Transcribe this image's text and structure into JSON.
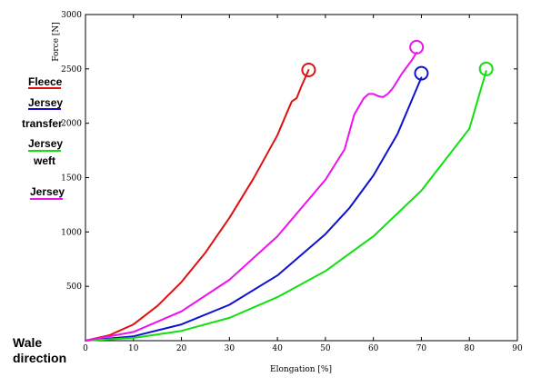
{
  "chart_data": {
    "type": "line",
    "xlabel": "Elongation [%]",
    "ylabel": "Force [N]",
    "xlim": [
      0,
      90
    ],
    "ylim": [
      0,
      3000
    ],
    "xticks": [
      0,
      10,
      20,
      30,
      40,
      50,
      60,
      70,
      80,
      90
    ],
    "yticks": [
      500,
      1000,
      1500,
      2000,
      2500,
      3000
    ],
    "grid": false,
    "legend_position": "left",
    "caption": [
      "Wale",
      "direction"
    ],
    "series": [
      {
        "name": "Fleece",
        "color": "#e01010",
        "x": [
          0,
          5,
          10,
          15,
          20,
          25,
          30,
          35,
          40,
          42,
          43,
          44,
          45,
          46.5
        ],
        "y": [
          0,
          50,
          150,
          320,
          540,
          810,
          1130,
          1490,
          1890,
          2100,
          2200,
          2230,
          2340,
          2490
        ],
        "break_marker": {
          "x": 46.5,
          "y": 2490
        }
      },
      {
        "name": "Jersey transfer",
        "color": "#1010d0",
        "x": [
          0,
          10,
          20,
          30,
          40,
          50,
          55,
          60,
          65,
          70
        ],
        "y": [
          0,
          40,
          150,
          330,
          600,
          980,
          1220,
          1520,
          1900,
          2420
        ],
        "break_marker": {
          "x": 70,
          "y": 2460
        }
      },
      {
        "name": "Jersey weft",
        "color": "#10e010",
        "x": [
          0,
          10,
          20,
          30,
          40,
          50,
          60,
          70,
          80,
          83.5
        ],
        "y": [
          0,
          25,
          90,
          210,
          400,
          640,
          960,
          1380,
          1950,
          2480
        ],
        "break_marker": {
          "x": 83.5,
          "y": 2500
        }
      },
      {
        "name": "Jersey",
        "color": "#ee10ee",
        "x": [
          0,
          10,
          20,
          30,
          40,
          50,
          54,
          56,
          58,
          59,
          60,
          61,
          62,
          63,
          64,
          66,
          68,
          69
        ],
        "y": [
          0,
          80,
          270,
          560,
          960,
          1480,
          1760,
          2080,
          2230,
          2270,
          2270,
          2250,
          2240,
          2270,
          2320,
          2460,
          2580,
          2650
        ],
        "break_marker": {
          "x": 69,
          "y": 2700
        }
      }
    ]
  }
}
